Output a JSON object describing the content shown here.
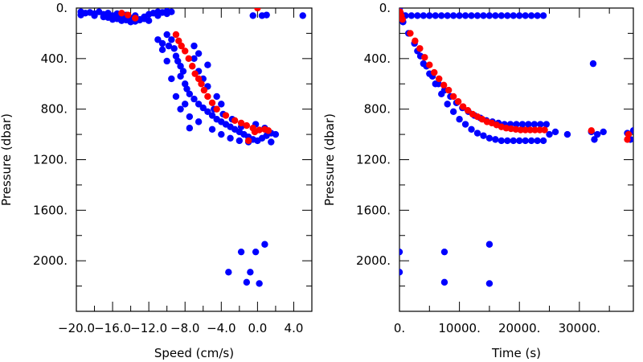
{
  "chart_data": [
    {
      "type": "scatter",
      "xlabel": "Speed (cm/s)",
      "ylabel": "Pressure (dbar)",
      "xlim": [
        -20,
        6
      ],
      "ylim": [
        2400,
        0
      ],
      "xticks": [
        -20,
        -16,
        -12,
        -8,
        -4,
        0,
        4
      ],
      "xtick_labels": [
        "−20.0",
        "−16.0",
        "−12.0",
        "−8.0",
        "−4.0",
        "0.0",
        "4.0"
      ],
      "yticks": [
        0,
        400,
        800,
        1200,
        1600,
        2000
      ],
      "ytick_labels": [
        "0.",
        "400.",
        "800.",
        "1200.",
        "1600.",
        "2000."
      ],
      "grid": false,
      "series": [
        {
          "color": "#0000ff",
          "points": [
            [
              -19.5,
              30
            ],
            [
              -19,
              40
            ],
            [
              -18.5,
              35
            ],
            [
              -18,
              45
            ],
            [
              -17.5,
              30
            ],
            [
              -17,
              50
            ],
            [
              -16.5,
              40
            ],
            [
              -16,
              60
            ],
            [
              -15.5,
              45
            ],
            [
              -15,
              70
            ],
            [
              -14.5,
              55
            ],
            [
              -14,
              80
            ],
            [
              -13.5,
              60
            ],
            [
              -13,
              90
            ],
            [
              -12.5,
              70
            ],
            [
              -12,
              50
            ],
            [
              -11.5,
              40
            ],
            [
              -11,
              30
            ],
            [
              -10.5,
              35
            ],
            [
              -10,
              25
            ],
            [
              -9.5,
              30
            ],
            [
              -15,
              100
            ],
            [
              -14,
              110
            ],
            [
              -13,
              95
            ],
            [
              -16,
              90
            ],
            [
              -17,
              70
            ],
            [
              -18,
              60
            ],
            [
              -12,
              100
            ],
            [
              -13.5,
              105
            ],
            [
              -14.5,
              95
            ],
            [
              -11,
              60
            ],
            [
              -10,
              45
            ],
            [
              -19.5,
              55
            ],
            [
              -15.5,
              85
            ],
            [
              -16.5,
              75
            ],
            [
              -12.5,
              85
            ],
            [
              -0.5,
              60
            ],
            [
              0.5,
              60
            ],
            [
              1,
              55
            ],
            [
              5,
              60
            ],
            [
              -10,
              210
            ],
            [
              -9.5,
              250
            ],
            [
              -9.8,
              300
            ],
            [
              -9.2,
              320
            ],
            [
              -9,
              380
            ],
            [
              -8.8,
              420
            ],
            [
              -8.5,
              460
            ],
            [
              -8.2,
              500
            ],
            [
              -8.5,
              540
            ],
            [
              -8,
              600
            ],
            [
              -7.8,
              640
            ],
            [
              -7.5,
              680
            ],
            [
              -7,
              720
            ],
            [
              -6.5,
              760
            ],
            [
              -6,
              790
            ],
            [
              -5.5,
              820
            ],
            [
              -5,
              850
            ],
            [
              -4.5,
              880
            ],
            [
              -4,
              900
            ],
            [
              -3.5,
              920
            ],
            [
              -3,
              940
            ],
            [
              -2.5,
              960
            ],
            [
              -2,
              980
            ],
            [
              -1.5,
              1000
            ],
            [
              -1,
              1020
            ],
            [
              -0.5,
              1040
            ],
            [
              0,
              1050
            ],
            [
              0.5,
              1030
            ],
            [
              1,
              1010
            ],
            [
              1.5,
              990
            ],
            [
              2,
              1000
            ],
            [
              -11,
              250
            ],
            [
              -10.5,
              280
            ],
            [
              -10.5,
              330
            ],
            [
              -7,
              400
            ],
            [
              -6.5,
              500
            ],
            [
              -6,
              560
            ],
            [
              -5.5,
              620
            ],
            [
              -9,
              700
            ],
            [
              -8.5,
              800
            ],
            [
              -7.5,
              860
            ],
            [
              -6.5,
              900
            ],
            [
              -5,
              960
            ],
            [
              -4,
              1000
            ],
            [
              -3,
              1030
            ],
            [
              -2,
              1050
            ],
            [
              -1,
              1060
            ],
            [
              -7.5,
              950
            ],
            [
              -8,
              760
            ],
            [
              -9.5,
              560
            ],
            [
              -10,
              420
            ],
            [
              -7,
              300
            ],
            [
              -6.5,
              360
            ],
            [
              -5.5,
              450
            ],
            [
              -4.5,
              700
            ],
            [
              -4,
              760
            ],
            [
              1.5,
              1060
            ],
            [
              0.8,
              950
            ],
            [
              -0.2,
              920
            ],
            [
              -1.8,
              940
            ],
            [
              -2.8,
              880
            ],
            [
              -3.8,
              840
            ],
            [
              -4.8,
              800
            ],
            [
              0.8,
              1870
            ],
            [
              -0.2,
              1930
            ],
            [
              -1.8,
              1930
            ],
            [
              -3.2,
              2090
            ],
            [
              -0.8,
              2090
            ],
            [
              -1.2,
              2170
            ],
            [
              0.2,
              2180
            ]
          ]
        },
        {
          "color": "#ff0000",
          "points": [
            [
              -15,
              40
            ],
            [
              -14.3,
              55
            ],
            [
              -13.5,
              80
            ],
            [
              -9,
              210
            ],
            [
              -8.7,
              260
            ],
            [
              -8.4,
              300
            ],
            [
              -8,
              340
            ],
            [
              -7.6,
              400
            ],
            [
              -7.2,
              460
            ],
            [
              -6.9,
              520
            ],
            [
              -6.5,
              560
            ],
            [
              -6.2,
              600
            ],
            [
              -5.9,
              650
            ],
            [
              -5.5,
              700
            ],
            [
              -5,
              750
            ],
            [
              -4.5,
              800
            ],
            [
              -3.5,
              850
            ],
            [
              -2.5,
              890
            ],
            [
              -1.8,
              910
            ],
            [
              -1.2,
              930
            ],
            [
              -0.5,
              950
            ],
            [
              0.2,
              965
            ],
            [
              0.8,
              960
            ],
            [
              1.2,
              970
            ],
            [
              -0.3,
              980
            ],
            [
              -1,
              1050
            ],
            [
              0,
              0
            ]
          ]
        }
      ]
    },
    {
      "type": "scatter",
      "xlabel": "Time (s)",
      "ylabel": "Pressure (dbar)",
      "xlim": [
        0,
        39000
      ],
      "ylim": [
        2400,
        0
      ],
      "xticks": [
        0,
        10000,
        20000,
        30000
      ],
      "xtick_labels": [
        "0.",
        "10000.",
        "20000.",
        "30000."
      ],
      "yticks": [
        0,
        400,
        800,
        1200,
        1600,
        2000
      ],
      "ytick_labels": [
        "0.",
        "400.",
        "800.",
        "1200.",
        "1600.",
        "2000."
      ],
      "grid": false,
      "series": [
        {
          "color": "#0000ff",
          "points": [
            [
              0,
              10
            ],
            [
              200,
              40
            ],
            [
              400,
              80
            ],
            [
              600,
              110
            ],
            [
              1000,
              60
            ],
            [
              2000,
              60
            ],
            [
              3000,
              60
            ],
            [
              4000,
              60
            ],
            [
              5000,
              60
            ],
            [
              6000,
              60
            ],
            [
              7000,
              60
            ],
            [
              8000,
              60
            ],
            [
              9000,
              60
            ],
            [
              10000,
              60
            ],
            [
              11000,
              60
            ],
            [
              12000,
              60
            ],
            [
              13000,
              60
            ],
            [
              14000,
              60
            ],
            [
              15000,
              60
            ],
            [
              16000,
              60
            ],
            [
              17000,
              60
            ],
            [
              18000,
              60
            ],
            [
              19000,
              60
            ],
            [
              20000,
              60
            ],
            [
              21000,
              60
            ],
            [
              22000,
              60
            ],
            [
              23000,
              60
            ],
            [
              24000,
              60
            ],
            [
              1500,
              200
            ],
            [
              2500,
              280
            ],
            [
              3500,
              380
            ],
            [
              4500,
              460
            ],
            [
              5500,
              540
            ],
            [
              6500,
              600
            ],
            [
              7500,
              650
            ],
            [
              8500,
              700
            ],
            [
              9500,
              750
            ],
            [
              10500,
              790
            ],
            [
              11500,
              820
            ],
            [
              12500,
              850
            ],
            [
              13500,
              870
            ],
            [
              14500,
              890
            ],
            [
              15500,
              900
            ],
            [
              16500,
              910
            ],
            [
              17500,
              920
            ],
            [
              18500,
              920
            ],
            [
              19500,
              920
            ],
            [
              20500,
              920
            ],
            [
              21500,
              920
            ],
            [
              22500,
              920
            ],
            [
              23500,
              920
            ],
            [
              24500,
              920
            ],
            [
              3000,
              340
            ],
            [
              4000,
              440
            ],
            [
              5000,
              520
            ],
            [
              6000,
              600
            ],
            [
              7000,
              680
            ],
            [
              8000,
              760
            ],
            [
              9000,
              820
            ],
            [
              10000,
              880
            ],
            [
              11000,
              920
            ],
            [
              12000,
              960
            ],
            [
              13000,
              990
            ],
            [
              14000,
              1010
            ],
            [
              15000,
              1030
            ],
            [
              16000,
              1040
            ],
            [
              17000,
              1050
            ],
            [
              18000,
              1050
            ],
            [
              19000,
              1050
            ],
            [
              20000,
              1050
            ],
            [
              21000,
              1050
            ],
            [
              22000,
              1050
            ],
            [
              23000,
              1050
            ],
            [
              24000,
              1050
            ],
            [
              25000,
              1000
            ],
            [
              26000,
              980
            ],
            [
              28000,
              1000
            ],
            [
              32000,
              980
            ],
            [
              32500,
              1040
            ],
            [
              33000,
              1000
            ],
            [
              32300,
              440
            ],
            [
              34000,
              980
            ],
            [
              38000,
              990
            ],
            [
              38500,
              1040
            ],
            [
              39000,
              970
            ],
            [
              0,
              1930
            ],
            [
              0,
              2090
            ],
            [
              7500,
              1930
            ],
            [
              7500,
              2170
            ],
            [
              15000,
              1870
            ],
            [
              15000,
              2180
            ]
          ]
        },
        {
          "color": "#ff0000",
          "points": [
            [
              100,
              30
            ],
            [
              300,
              60
            ],
            [
              500,
              90
            ],
            [
              1800,
              200
            ],
            [
              2600,
              260
            ],
            [
              3400,
              320
            ],
            [
              4200,
              390
            ],
            [
              5000,
              450
            ],
            [
              5800,
              510
            ],
            [
              6600,
              560
            ],
            [
              7400,
              610
            ],
            [
              8200,
              650
            ],
            [
              9000,
              700
            ],
            [
              9800,
              740
            ],
            [
              10600,
              780
            ],
            [
              11400,
              810
            ],
            [
              12200,
              840
            ],
            [
              13000,
              860
            ],
            [
              13800,
              880
            ],
            [
              14600,
              900
            ],
            [
              15400,
              910
            ],
            [
              16200,
              925
            ],
            [
              17000,
              940
            ],
            [
              17800,
              950
            ],
            [
              18600,
              955
            ],
            [
              19400,
              960
            ],
            [
              20200,
              965
            ],
            [
              21000,
              965
            ],
            [
              21800,
              965
            ],
            [
              22600,
              965
            ],
            [
              23400,
              965
            ],
            [
              24200,
              965
            ],
            [
              32000,
              970
            ],
            [
              38000,
              1040
            ],
            [
              38200,
              1000
            ]
          ]
        }
      ]
    }
  ]
}
